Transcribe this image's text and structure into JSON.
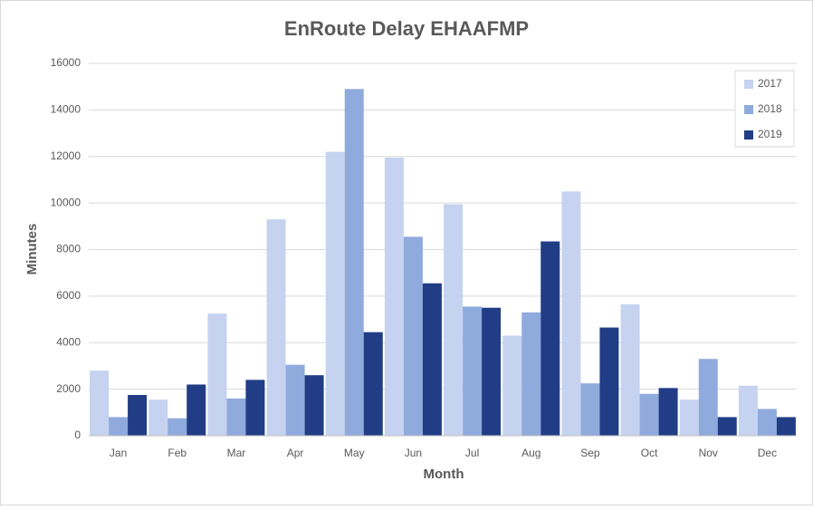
{
  "chart_data": {
    "type": "bar",
    "title": "EnRoute Delay EHAAFMP",
    "x_label": "Month",
    "y_label": "Minutes",
    "categories": [
      "Jan",
      "Feb",
      "Mar",
      "Apr",
      "May",
      "Jun",
      "Jul",
      "Aug",
      "Sep",
      "Oct",
      "Nov",
      "Dec"
    ],
    "series": [
      {
        "name": "2017",
        "color": "#c5d3f0",
        "values": [
          2800,
          1550,
          5250,
          9300,
          12200,
          11950,
          9950,
          4300,
          10500,
          5650,
          1550,
          2150
        ]
      },
      {
        "name": "2018",
        "color": "#8faadc",
        "values": [
          800,
          750,
          1600,
          3050,
          14900,
          8550,
          5550,
          5300,
          2250,
          1800,
          3300,
          1150
        ]
      },
      {
        "name": "2019",
        "color": "#203d85",
        "values": [
          1750,
          2200,
          2400,
          2600,
          4450,
          6550,
          5500,
          8350,
          4650,
          2050,
          800,
          800
        ]
      }
    ],
    "ylim": [
      0,
      16000
    ],
    "yticks": [
      0,
      2000,
      4000,
      6000,
      8000,
      10000,
      12000,
      14000,
      16000
    ],
    "grid": true,
    "legend": "top-right"
  }
}
